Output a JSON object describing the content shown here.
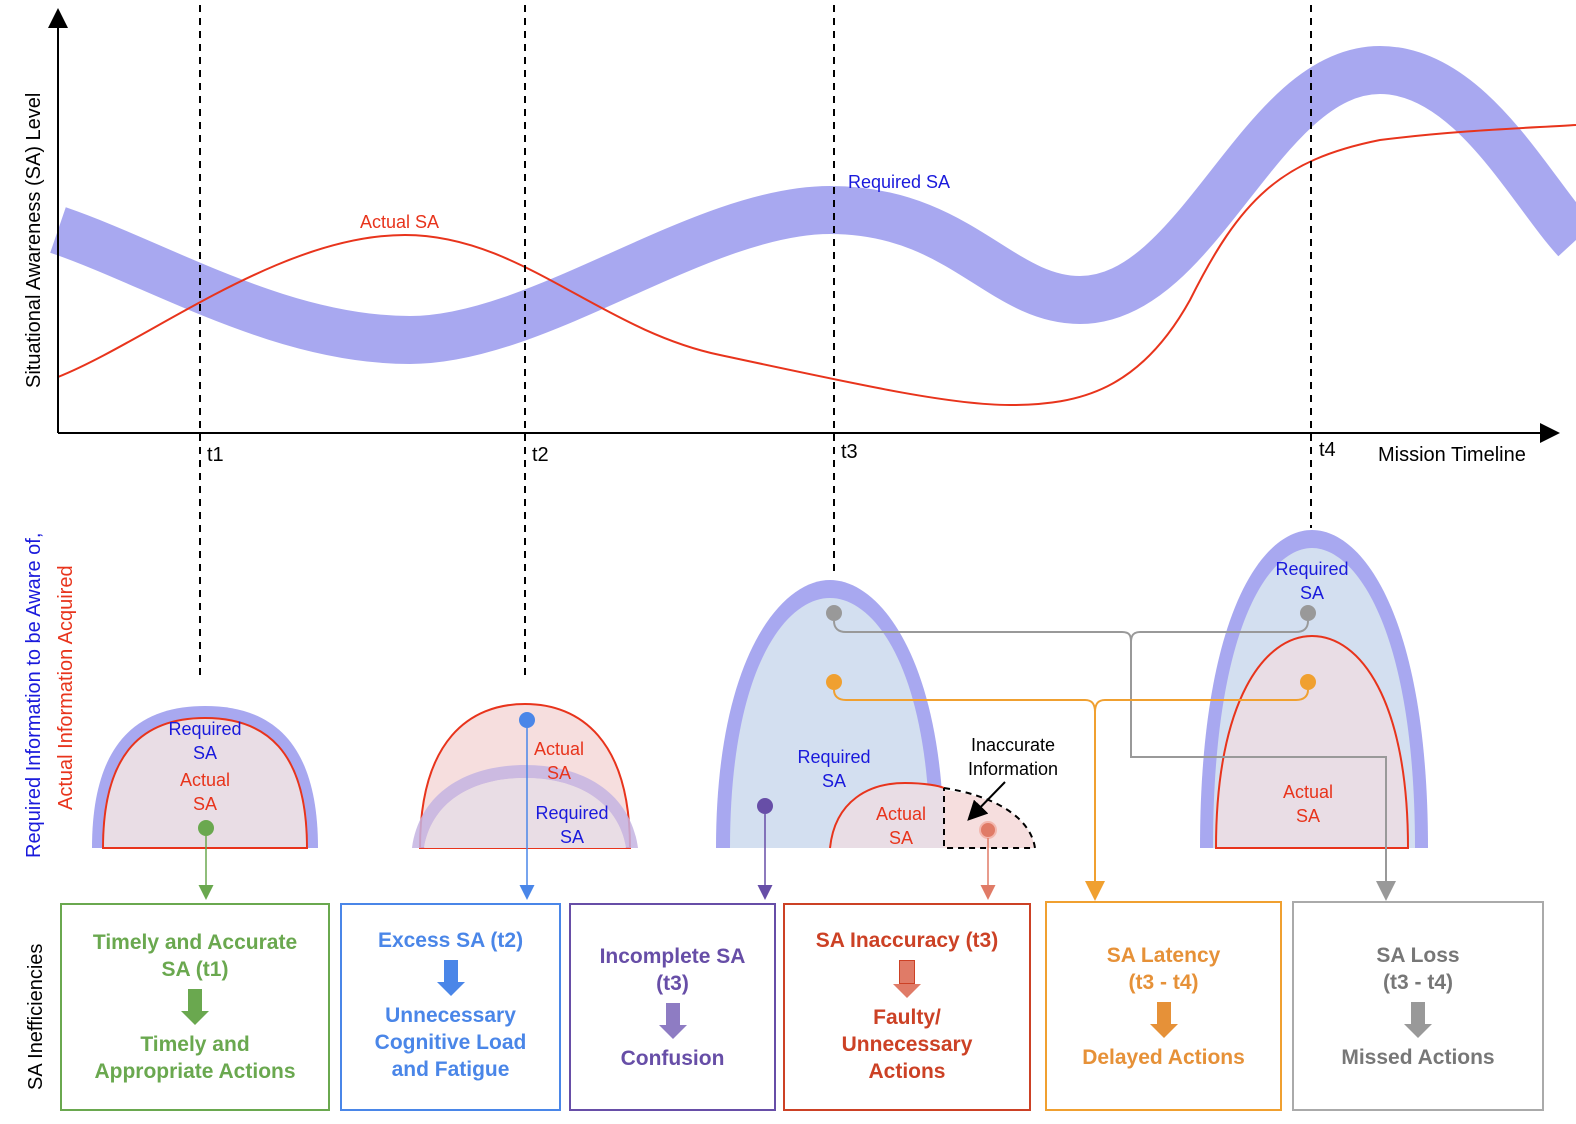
{
  "axes": {
    "y_label": "Situational Awareness (SA) Level",
    "x_label": "Mission Timeline"
  },
  "time_marks": [
    "t1",
    "t2",
    "t3",
    "t4"
  ],
  "curves": {
    "actual_label": "Actual SA",
    "required_label": "Required SA",
    "actual_color": "#e8341c",
    "required_color": "#a8a8f0"
  },
  "side_label": {
    "line1": "Required Information to be Aware of,",
    "line2": "Actual Information Acquired",
    "line1_color": "#1a1adc",
    "line2_color": "#e8341c"
  },
  "bottom_label": "SA Inefficiencies",
  "domes": {
    "required_sa": "Required",
    "required_sa_2": "SA",
    "actual_sa": "Actual",
    "actual_sa_2": "SA",
    "inaccurate_1": "Inaccurate",
    "inaccurate_2": "Information"
  },
  "boxes": [
    {
      "title": "Timely and Accurate SA (t1)",
      "result": "Timely and Appropriate Actions",
      "color": "#6aa84f"
    },
    {
      "title": "Excess SA (t2)",
      "result": "Unnecessary Cognitive Load and Fatigue",
      "color": "#4a86e8"
    },
    {
      "title": "Incomplete SA (t3)",
      "result": "Confusion",
      "color": "#674ea7"
    },
    {
      "title": "SA Inaccuracy (t3)",
      "result": "Faulty/ Unnecessary Actions",
      "color": "#cc4125"
    },
    {
      "title": "SA Latency (t3 - t4)",
      "result": "Delayed Actions",
      "color": "#e69138"
    },
    {
      "title": "SA Loss (t3 - t4)",
      "result": "Missed Actions",
      "color": "#888888"
    }
  ]
}
